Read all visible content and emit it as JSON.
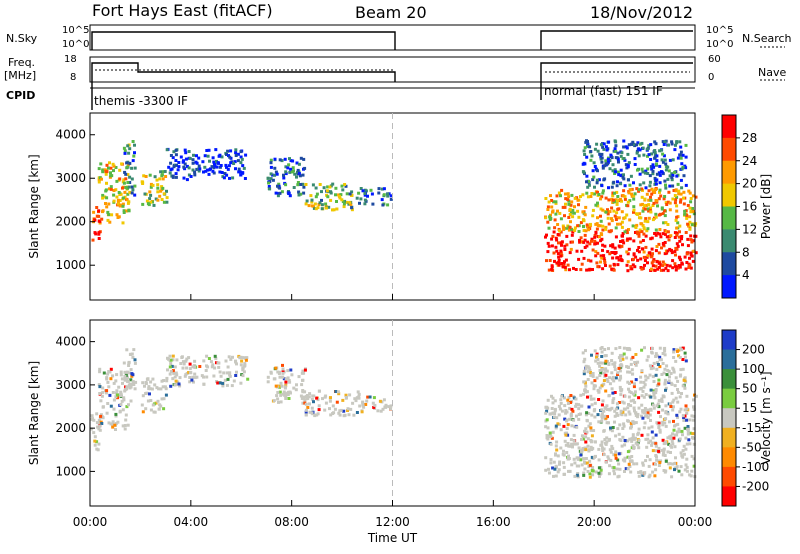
{
  "header": {
    "radar": "Fort Hays East (fitACF)",
    "beam": "Beam 20",
    "date": "18/Nov/2012"
  },
  "panels": {
    "nsky_label": "N.Sky",
    "nsky_ticks": [
      "10^5",
      "10^0"
    ],
    "nsearch_label": "N.Search",
    "nsearch_ticks": [
      "10^5",
      "10^0"
    ],
    "freq_label": "Freq.",
    "freq_unit": "[MHz]",
    "freq_ticks": [
      "18",
      "8"
    ],
    "nave_label": "Nave",
    "nave_ticks": [
      "60",
      "0"
    ],
    "cpid_label": "CPID",
    "cpid_segments": [
      "themis -3300 IF",
      "normal (fast) 151 IF"
    ]
  },
  "colors": {
    "grey_scatter": "#c8c8c0",
    "line": "#000000"
  },
  "chart_data": [
    {
      "type": "heatmap",
      "name": "power",
      "ylabel": "Slant Range [km]",
      "yticks": [
        "4000",
        "3000",
        "2000",
        "1000"
      ],
      "ylim": [
        200,
        4500
      ],
      "xlim": [
        0,
        24
      ],
      "colorbar_label": "Power [dB]",
      "colorbar_ticks": [
        "28",
        "24",
        "20",
        "16",
        "12",
        "8",
        "4"
      ],
      "colorbar_colors": [
        "#ff0000",
        "#ff4a00",
        "#ff9a00",
        "#f0c800",
        "#56b845",
        "#3a8a70",
        "#1e4aa0",
        "#0018ff"
      ],
      "dashed_time": 12,
      "blobs": [
        {
          "t0": 0.0,
          "t1": 0.35,
          "r0": 1500,
          "r1": 2450,
          "c": 0.15
        },
        {
          "t0": 0.3,
          "t1": 1.5,
          "r0": 2000,
          "r1": 3400,
          "c": 0.4
        },
        {
          "t0": 1.3,
          "t1": 1.75,
          "r0": 2600,
          "r1": 3900,
          "c": 0.7
        },
        {
          "t0": 2.0,
          "t1": 3.0,
          "r0": 2400,
          "r1": 3200,
          "c": 0.5
        },
        {
          "t0": 3.0,
          "t1": 6.2,
          "r0": 3000,
          "r1": 3700,
          "c": 0.9
        },
        {
          "t0": 7.0,
          "t1": 8.5,
          "r0": 2600,
          "r1": 3500,
          "c": 0.8
        },
        {
          "t0": 8.5,
          "t1": 10.7,
          "r0": 2300,
          "r1": 2900,
          "c": 0.55
        },
        {
          "t0": 10.7,
          "t1": 11.9,
          "r0": 2400,
          "r1": 2800,
          "c": 0.8
        },
        {
          "t0": 18.0,
          "t1": 24.0,
          "r0": 900,
          "r1": 1800,
          "c": 0.05
        },
        {
          "t0": 18.0,
          "t1": 24.0,
          "r0": 1800,
          "r1": 2800,
          "c": 0.35
        },
        {
          "t0": 19.5,
          "t1": 23.6,
          "r0": 2800,
          "r1": 3900,
          "c": 0.8
        }
      ]
    },
    {
      "type": "heatmap",
      "name": "velocity",
      "ylabel": "Slant Range [km]",
      "yticks": [
        "4000",
        "3000",
        "2000",
        "1000"
      ],
      "ylim": [
        200,
        4500
      ],
      "xlim": [
        0,
        24
      ],
      "colorbar_label": "Velocity [m s⁻¹]",
      "colorbar_ticks": [
        "200",
        "100",
        "50",
        "15",
        "-15",
        "-50",
        "-100",
        "-200"
      ],
      "colorbar_colors": [
        "#1e3cc8",
        "#2a6e9a",
        "#3a8f3a",
        "#7acc40",
        "#c8c8c0",
        "#f0b020",
        "#ff8a00",
        "#ff4a00",
        "#ff0000"
      ],
      "xticks": [
        "00:00",
        "04:00",
        "08:00",
        "12:00",
        "16:00",
        "20:00",
        "00:00"
      ],
      "xlabel": "Time UT",
      "dashed_time": 12,
      "blobs": [
        {
          "t0": 0.0,
          "t1": 0.35,
          "r0": 1500,
          "r1": 2450,
          "c": 0.5
        },
        {
          "t0": 0.3,
          "t1": 1.5,
          "r0": 2000,
          "r1": 3400,
          "c": 0.5
        },
        {
          "t0": 1.3,
          "t1": 1.75,
          "r0": 2600,
          "r1": 3900,
          "c": 0.5
        },
        {
          "t0": 2.0,
          "t1": 3.0,
          "r0": 2400,
          "r1": 3200,
          "c": 0.5
        },
        {
          "t0": 3.0,
          "t1": 6.2,
          "r0": 3000,
          "r1": 3700,
          "c": 0.5
        },
        {
          "t0": 7.0,
          "t1": 8.5,
          "r0": 2600,
          "r1": 3500,
          "c": 0.5
        },
        {
          "t0": 8.5,
          "t1": 10.7,
          "r0": 2300,
          "r1": 2900,
          "c": 0.5
        },
        {
          "t0": 10.7,
          "t1": 11.9,
          "r0": 2400,
          "r1": 2800,
          "c": 0.5
        },
        {
          "t0": 18.0,
          "t1": 24.0,
          "r0": 900,
          "r1": 1800,
          "c": 0.5
        },
        {
          "t0": 18.0,
          "t1": 24.0,
          "r0": 1800,
          "r1": 2800,
          "c": 0.55
        },
        {
          "t0": 19.5,
          "t1": 23.6,
          "r0": 2800,
          "r1": 3900,
          "c": 0.5
        }
      ]
    }
  ]
}
